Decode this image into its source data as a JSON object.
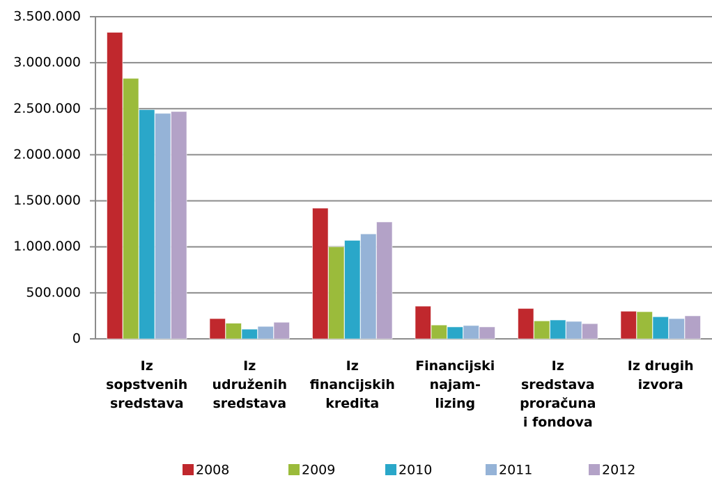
{
  "chart_data": {
    "type": "bar",
    "categories": [
      "Iz\nsopstvenih\nsredstava",
      "Iz\nudruženih\nsredstava",
      "Iz\nfinancijskih\nkredita",
      "Financijski\nnajam-\nlizing",
      "Iz\nsredstava\nproračuna\ni fondova",
      "Iz drugih\nizvora"
    ],
    "series": [
      {
        "name": "2008",
        "color": "#c0282d",
        "values": [
          3330000,
          220000,
          1420000,
          355000,
          330000,
          300000
        ]
      },
      {
        "name": "2009",
        "color": "#9bbb3b",
        "values": [
          2830000,
          170000,
          1000000,
          150000,
          195000,
          295000
        ]
      },
      {
        "name": "2010",
        "color": "#2aa7c9",
        "values": [
          2490000,
          105000,
          1070000,
          130000,
          205000,
          240000
        ]
      },
      {
        "name": "2011",
        "color": "#95b3d7",
        "values": [
          2450000,
          135000,
          1140000,
          145000,
          190000,
          220000
        ]
      },
      {
        "name": "2012",
        "color": "#b3a2c7",
        "values": [
          2470000,
          180000,
          1270000,
          130000,
          165000,
          250000
        ]
      }
    ],
    "ylim": [
      0,
      3500000
    ],
    "yticks": [
      0,
      {
        "value": 500000,
        "label": "500.000"
      },
      {
        "value": 1000000,
        "label": "1.000.000"
      },
      {
        "value": 1500000,
        "label": "1.500.000"
      },
      {
        "value": 2000000,
        "label": "2.000.000"
      },
      {
        "value": 2500000,
        "label": "2.500.000"
      },
      {
        "value": 3000000,
        "label": "3.000.000"
      },
      {
        "value": 3500000,
        "label": "3.500.000"
      }
    ],
    "grid": true,
    "legend": "bottom"
  }
}
